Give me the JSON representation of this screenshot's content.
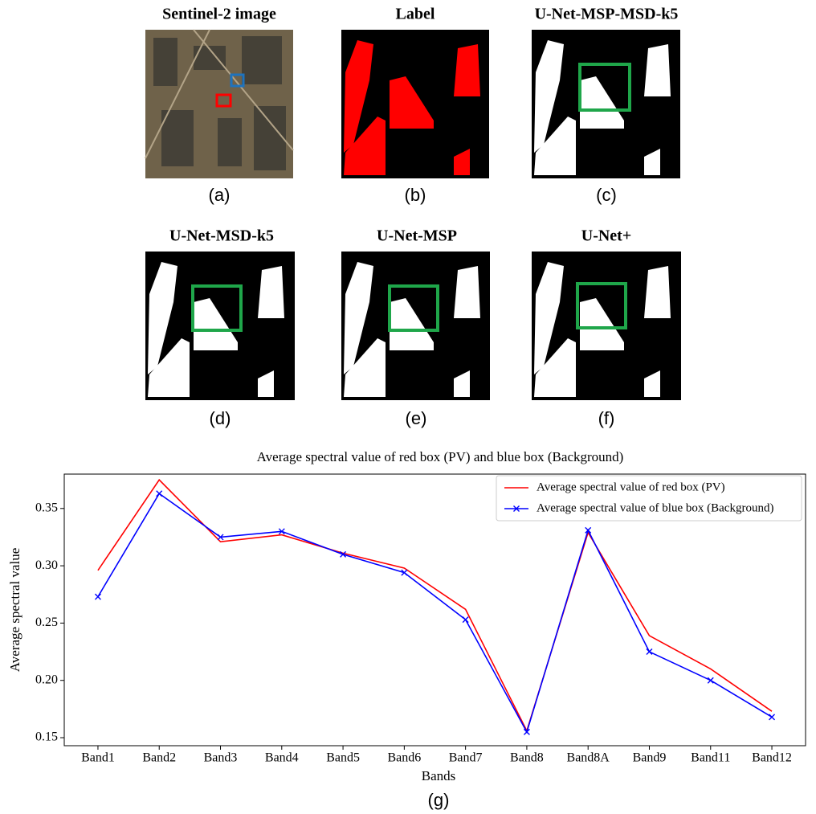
{
  "panels": [
    {
      "title": "Sentinel-2 image",
      "caption": "(a)"
    },
    {
      "title": "Label",
      "caption": "(b)"
    },
    {
      "title": "U-Net-MSP-MSD-k5",
      "caption": "(c)"
    },
    {
      "title": "U-Net-MSD-k5",
      "caption": "(d)"
    },
    {
      "title": "U-Net-MSP",
      "caption": "(e)"
    },
    {
      "title": "U-Net+",
      "caption": "(f)"
    }
  ],
  "chart_data": {
    "type": "line",
    "title": "Average spectral value of red box (PV) and blue box (Background)",
    "x_label": "Bands",
    "y_label": "Average spectral value",
    "caption": "(g)",
    "categories": [
      "Band1",
      "Band2",
      "Band3",
      "Band4",
      "Band5",
      "Band6",
      "Band7",
      "Band8",
      "Band8A",
      "Band9",
      "Band11",
      "Band12"
    ],
    "series": [
      {
        "name": "Average spectral value of red box (PV)",
        "color": "#ff0000",
        "marker": null,
        "values": [
          0.296,
          0.375,
          0.321,
          0.327,
          0.311,
          0.298,
          0.262,
          0.156,
          0.329,
          0.239,
          0.21,
          0.173
        ]
      },
      {
        "name": "Average spectral value of blue box (Background)",
        "color": "#0000ff",
        "marker": "x",
        "values": [
          0.273,
          0.363,
          0.325,
          0.33,
          0.31,
          0.294,
          0.253,
          0.155,
          0.331,
          0.225,
          0.2,
          0.168
        ]
      }
    ],
    "ylim": [
      0.143,
      0.38
    ],
    "yticks": [
      0.15,
      {
        "value": 0.2,
        "label": "0.20"
      },
      0.25,
      {
        "value": 0.3,
        "label": "0.30"
      },
      0.35
    ],
    "legend": "upper right",
    "grid": false
  }
}
